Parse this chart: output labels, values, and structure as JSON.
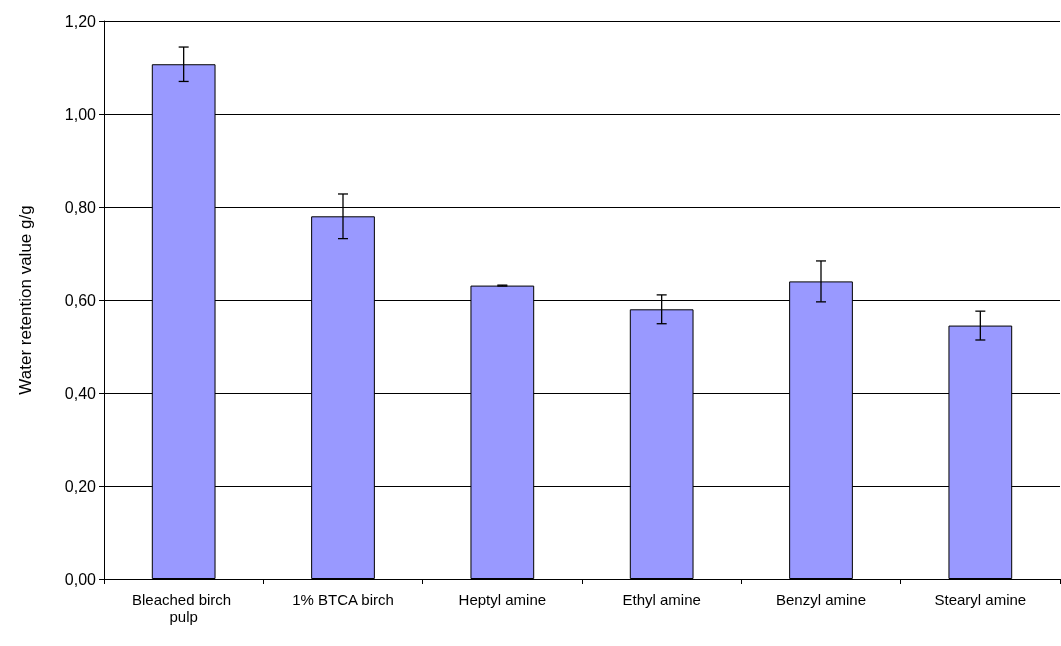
{
  "chart_data": {
    "type": "bar",
    "ylabel": "Water retention value g/g",
    "categories": [
      "Bleached birch pulp",
      "1% BTCA birch",
      "Heptyl amine",
      "Ethyl amine",
      "Benzyl amine",
      "Stearyl amine"
    ],
    "values": [
      1.107,
      0.78,
      0.631,
      0.58,
      0.64,
      0.545
    ],
    "errors": [
      0.037,
      0.048,
      0.001,
      0.031,
      0.044,
      0.031
    ],
    "color": "#9999ff",
    "ylim": [
      0,
      1.2
    ],
    "yticks": [
      {
        "value": 0,
        "label": "0,00"
      },
      {
        "value": 0.2,
        "label": "0,20"
      },
      {
        "value": 0.4,
        "label": "0,40"
      },
      {
        "value": 0.6,
        "label": "0,60"
      },
      {
        "value": 0.8,
        "label": "0,80"
      },
      {
        "value": 1.0,
        "label": "1,00"
      },
      {
        "value": 1.2,
        "label": "1,20"
      }
    ],
    "grid": "y"
  }
}
